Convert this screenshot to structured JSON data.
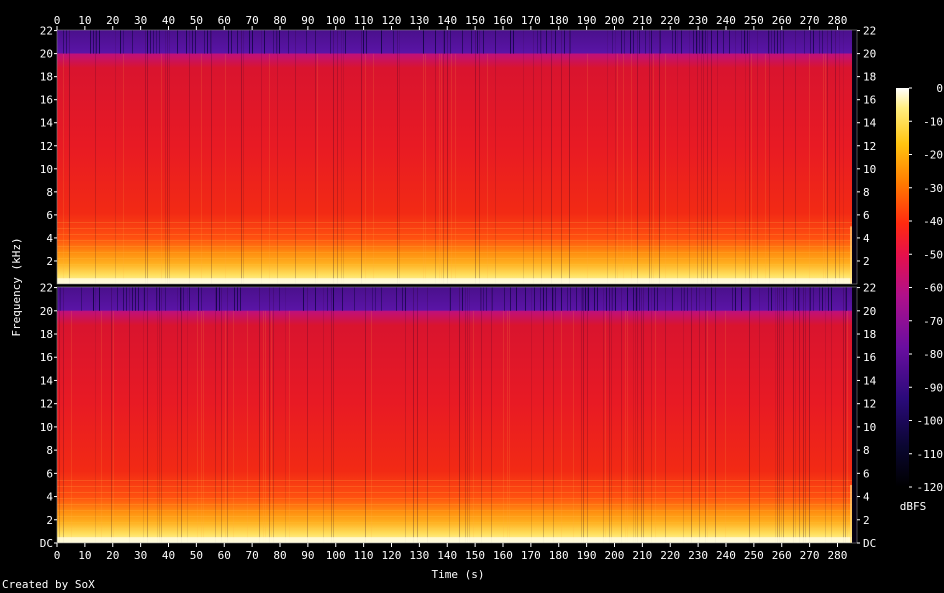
{
  "chart_data": {
    "type": "heatmap",
    "title": "",
    "xlabel": "Time (s)",
    "ylabel": "Frequency (kHz)",
    "x_ticks": [
      0,
      10,
      20,
      30,
      40,
      50,
      60,
      70,
      80,
      90,
      100,
      110,
      120,
      130,
      140,
      150,
      160,
      170,
      180,
      190,
      200,
      210,
      220,
      230,
      240,
      250,
      260,
      270,
      280
    ],
    "xlim": [
      0,
      287
    ],
    "channels": [
      {
        "name": "channel-1",
        "y_tick_labels": [
          "2",
          "4",
          "6",
          "8",
          "10",
          "12",
          "14",
          "16",
          "18",
          "20",
          "22"
        ],
        "y_tick_values": [
          2,
          4,
          6,
          8,
          10,
          12,
          14,
          16,
          18,
          20,
          22
        ],
        "ylim": [
          0,
          22.05
        ]
      },
      {
        "name": "channel-2",
        "y_tick_labels": [
          "DC",
          "2",
          "4",
          "6",
          "8",
          "10",
          "12",
          "14",
          "16",
          "18",
          "20",
          "22"
        ],
        "y_tick_values": [
          0,
          2,
          4,
          6,
          8,
          10,
          12,
          14,
          16,
          18,
          20,
          22
        ],
        "ylim": [
          0,
          22.05
        ]
      }
    ],
    "colorbar": {
      "label": "dBFS",
      "tick_values": [
        0,
        -10,
        -20,
        -30,
        -40,
        -50,
        -60,
        -70,
        -80,
        -90,
        -100,
        -110,
        -120
      ],
      "tick_labels": [
        "0",
        "-10",
        "-20",
        "-30",
        "-40",
        "-50",
        "-60",
        "-70",
        "-80",
        "-90",
        "-100",
        "-110",
        "-120"
      ],
      "range": [
        -120,
        0
      ]
    },
    "notes": "Energy concentrated below ~5 kHz; strong low band (bright) near 0-1 kHz; upper band above ~20 kHz is very quiet (purple/dark)."
  },
  "credit": "Created by SoX"
}
